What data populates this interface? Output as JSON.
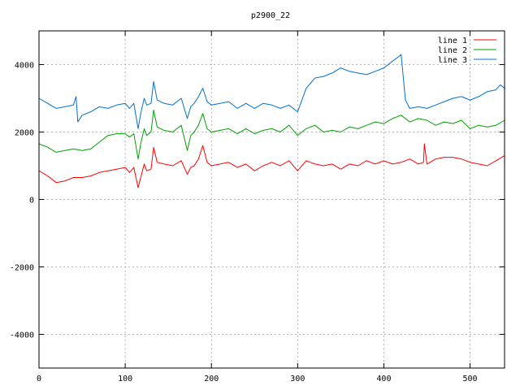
{
  "chart_data": {
    "type": "line",
    "title": "p2900_22",
    "xlabel": "",
    "ylabel": "",
    "xlim": [
      0,
      540
    ],
    "ylim": [
      -5000,
      5000
    ],
    "xticks": [
      0,
      100,
      200,
      300,
      400,
      500
    ],
    "yticks": [
      -4000,
      -2000,
      0,
      2000,
      4000
    ],
    "grid": true,
    "legend_position": "top-right",
    "series": [
      {
        "name": "line 1",
        "color": "#ff0000",
        "x": [
          0,
          10,
          20,
          30,
          40,
          50,
          60,
          70,
          80,
          90,
          100,
          105,
          110,
          115,
          118,
          122,
          125,
          130,
          133,
          137,
          145,
          155,
          165,
          172,
          176,
          180,
          185,
          190,
          195,
          200,
          210,
          220,
          230,
          240,
          250,
          260,
          270,
          280,
          290,
          300,
          310,
          320,
          330,
          340,
          350,
          360,
          370,
          380,
          390,
          400,
          410,
          420,
          430,
          440,
          446,
          447,
          450,
          460,
          470,
          480,
          490,
          500,
          510,
          520,
          530,
          540
        ],
        "y": [
          850,
          700,
          500,
          550,
          650,
          650,
          700,
          800,
          850,
          900,
          950,
          800,
          950,
          350,
          650,
          1050,
          850,
          900,
          1550,
          1100,
          1050,
          1000,
          1150,
          750,
          950,
          1000,
          1200,
          1600,
          1100,
          1000,
          1050,
          1100,
          950,
          1050,
          850,
          1000,
          1100,
          1000,
          1150,
          850,
          1150,
          1050,
          1000,
          1050,
          900,
          1050,
          1000,
          1150,
          1050,
          1150,
          1050,
          1100,
          1200,
          1050,
          1100,
          1650,
          1050,
          1200,
          1250,
          1250,
          1200,
          1100,
          1050,
          1000,
          1150,
          1300
        ]
      },
      {
        "name": "line 2",
        "color": "#00a000",
        "x": [
          0,
          10,
          20,
          30,
          40,
          50,
          60,
          70,
          80,
          90,
          100,
          105,
          110,
          115,
          118,
          122,
          125,
          130,
          133,
          137,
          145,
          155,
          165,
          172,
          176,
          180,
          185,
          190,
          195,
          200,
          210,
          220,
          230,
          240,
          250,
          260,
          270,
          280,
          290,
          300,
          310,
          320,
          330,
          340,
          350,
          360,
          370,
          380,
          390,
          400,
          410,
          420,
          430,
          440,
          450,
          460,
          470,
          480,
          490,
          500,
          510,
          520,
          530,
          540
        ],
        "y": [
          1650,
          1550,
          1400,
          1450,
          1500,
          1450,
          1500,
          1700,
          1900,
          1950,
          1950,
          1850,
          1950,
          1200,
          1650,
          2100,
          1900,
          2000,
          2650,
          2150,
          2050,
          2000,
          2200,
          1450,
          1900,
          2000,
          2200,
          2550,
          2100,
          2000,
          2050,
          2100,
          1950,
          2100,
          1950,
          2050,
          2100,
          2000,
          2200,
          1900,
          2100,
          2200,
          2000,
          2050,
          2000,
          2150,
          2100,
          2200,
          2300,
          2250,
          2400,
          2500,
          2300,
          2400,
          2350,
          2200,
          2300,
          2250,
          2350,
          2100,
          2200,
          2150,
          2200,
          2350
        ]
      },
      {
        "name": "line 3",
        "color": "#0070d0",
        "x": [
          0,
          10,
          20,
          30,
          40,
          43,
          45,
          50,
          60,
          70,
          80,
          90,
          100,
          105,
          110,
          115,
          118,
          122,
          125,
          130,
          133,
          137,
          145,
          155,
          165,
          172,
          176,
          180,
          185,
          190,
          195,
          200,
          210,
          220,
          230,
          240,
          250,
          260,
          270,
          280,
          290,
          300,
          310,
          320,
          330,
          340,
          350,
          360,
          370,
          380,
          390,
          400,
          410,
          418,
          420,
          425,
          430,
          440,
          450,
          460,
          470,
          480,
          490,
          500,
          510,
          520,
          530,
          535,
          540
        ],
        "y": [
          3000,
          2850,
          2700,
          2750,
          2800,
          3050,
          2300,
          2500,
          2600,
          2750,
          2700,
          2800,
          2850,
          2700,
          2850,
          2100,
          2550,
          3000,
          2800,
          2850,
          3500,
          2950,
          2850,
          2800,
          3000,
          2400,
          2750,
          2850,
          3050,
          3300,
          2900,
          2800,
          2850,
          2900,
          2700,
          2850,
          2700,
          2850,
          2800,
          2700,
          2800,
          2600,
          3300,
          3600,
          3650,
          3750,
          3900,
          3800,
          3750,
          3700,
          3800,
          3900,
          4100,
          4250,
          4300,
          2950,
          2700,
          2750,
          2700,
          2800,
          2900,
          3000,
          3050,
          2950,
          3050,
          3200,
          3250,
          3400,
          3300
        ]
      }
    ]
  }
}
